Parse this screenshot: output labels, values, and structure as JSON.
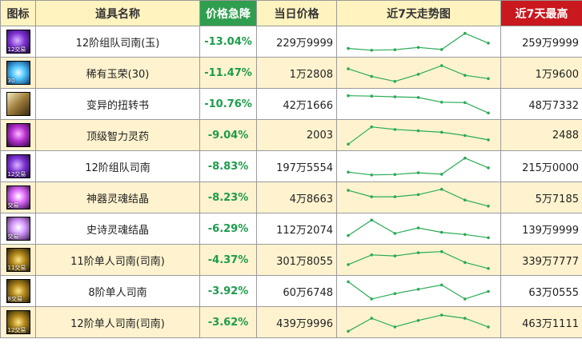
{
  "headers": {
    "icon": "图标",
    "name": "道具名称",
    "drop": "价格急降",
    "price": "当日价格",
    "trend": "近7天走势图",
    "max": "近7天最高"
  },
  "colors": {
    "drop_header": "#2f9e4f",
    "max_header": "#c9181e",
    "drop_text": "#1c9c4a",
    "trend_line": "#2aaa55",
    "row_alt": "#fff3cf"
  },
  "rows": [
    {
      "icon": "purple-tradable-icon",
      "icon_tag": "12交易",
      "name": "12阶组队司南(玉)",
      "drop": "-13.04%",
      "price": "229万9999",
      "max": "259万9999",
      "trend": [
        0.2,
        0.12,
        0.14,
        0.25,
        0.15,
        0.9,
        0.45
      ]
    },
    {
      "icon": "blue-orb-icon",
      "icon_tag": "30",
      "name": "稀有玉荣(30)",
      "drop": "-11.47%",
      "price": "1万2808",
      "max": "1万9600",
      "trend": [
        0.7,
        0.35,
        0.12,
        0.45,
        0.85,
        0.4,
        0.25
      ]
    },
    {
      "icon": "book-icon",
      "icon_tag": "",
      "name": "变异的扭转书",
      "drop": "-10.76%",
      "price": "42万1666",
      "max": "48万7332",
      "trend": [
        0.9,
        0.88,
        0.85,
        0.82,
        0.6,
        0.58,
        0.1
      ]
    },
    {
      "icon": "potion-icon",
      "icon_tag": "",
      "name": "顶级智力灵药",
      "drop": "-9.04%",
      "price": "2003",
      "max": "2488",
      "trend": [
        0.1,
        0.9,
        0.78,
        0.72,
        0.65,
        0.5,
        0.3
      ]
    },
    {
      "icon": "purple-tradable-icon",
      "icon_tag": "12交易",
      "name": "12阶组队司南",
      "drop": "-8.83%",
      "price": "197万5554",
      "max": "215万0000",
      "trend": [
        0.25,
        0.12,
        0.14,
        0.22,
        0.15,
        0.9,
        0.45
      ]
    },
    {
      "icon": "crystal-icon",
      "icon_tag": "交易",
      "name": "神器灵魂结晶",
      "drop": "-8.23%",
      "price": "4万8663",
      "max": "5万7185",
      "trend": [
        0.85,
        0.55,
        0.55,
        0.65,
        0.9,
        0.4,
        0.12
      ]
    },
    {
      "icon": "crystal-light-icon",
      "icon_tag": "交易",
      "name": "史诗灵魂结晶",
      "drop": "-6.29%",
      "price": "112万2074",
      "max": "139万9999",
      "trend": [
        0.2,
        0.92,
        0.3,
        0.55,
        0.35,
        0.25,
        0.1
      ]
    },
    {
      "icon": "gold-tradable-icon",
      "icon_tag": "11交易",
      "name": "11阶单人司南(司南)",
      "drop": "-4.37%",
      "price": "301万8055",
      "max": "339万7777",
      "trend": [
        0.3,
        0.75,
        0.7,
        0.85,
        0.9,
        0.4,
        0.12
      ]
    },
    {
      "icon": "gold-tradable-icon",
      "icon_tag": "8交易",
      "name": "8阶单人司南",
      "drop": "-3.92%",
      "price": "60万6748",
      "max": "63万0555",
      "trend": [
        0.95,
        0.15,
        0.4,
        0.6,
        0.8,
        0.15,
        0.5
      ]
    },
    {
      "icon": "gold-tradable-icon",
      "icon_tag": "12交易",
      "name": "12阶单人司南(司南)",
      "drop": "-3.62%",
      "price": "439万9996",
      "max": "463万1111",
      "trend": [
        0.1,
        0.7,
        0.3,
        0.6,
        0.85,
        0.7,
        0.3
      ]
    }
  ]
}
